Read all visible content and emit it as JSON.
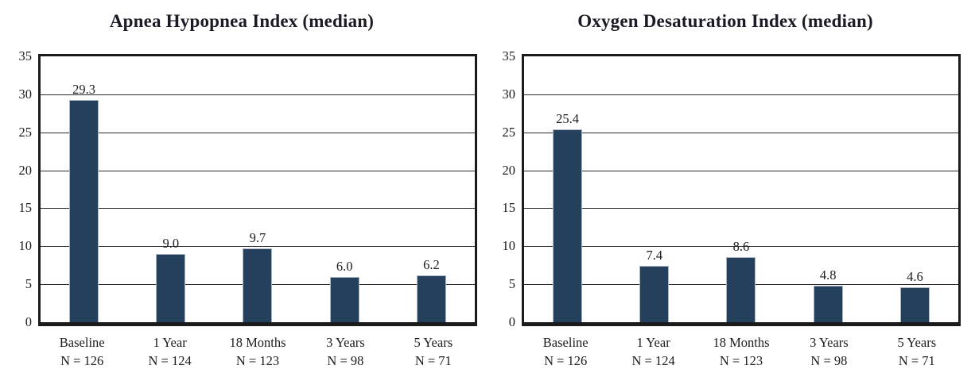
{
  "page": {
    "background": "#ffffff"
  },
  "colors": {
    "bar_fill": "#24405c",
    "bar_border": "#a9b6c2",
    "frame": "#1b1b1b",
    "gridline": "#2a2a2a",
    "text": "#1c1c22"
  },
  "chart_data": [
    {
      "type": "bar",
      "title": "Apnea Hypopnea Index (median)",
      "categories": [
        "Baseline",
        "1 Year",
        "18 Months",
        "3 Years",
        "5 Years"
      ],
      "category_sublabels": [
        "N = 126",
        "N = 124",
        "N = 123",
        "N = 98",
        "N = 71"
      ],
      "values": [
        29.3,
        9.0,
        9.7,
        6.0,
        6.2
      ],
      "value_labels": [
        "29.3",
        "9.0",
        "9.7",
        "6.0",
        "6.2"
      ],
      "xlabel": "",
      "ylabel": "",
      "ylim": [
        0,
        35
      ],
      "yticks": [
        0,
        5,
        10,
        15,
        20,
        25,
        30,
        35
      ],
      "grid": true,
      "legend": false
    },
    {
      "type": "bar",
      "title": "Oxygen Desaturation Index (median)",
      "categories": [
        "Baseline",
        "1 Year",
        "18 Months",
        "3 Years",
        "5 Years"
      ],
      "category_sublabels": [
        "N = 126",
        "N = 124",
        "N = 123",
        "N = 98",
        "N = 71"
      ],
      "values": [
        25.4,
        7.4,
        8.6,
        4.8,
        4.6
      ],
      "value_labels": [
        "25.4",
        "7.4",
        "8.6",
        "4.8",
        "4.6"
      ],
      "xlabel": "",
      "ylabel": "",
      "ylim": [
        0,
        35
      ],
      "yticks": [
        0,
        5,
        10,
        15,
        20,
        25,
        30,
        35
      ],
      "grid": true,
      "legend": false
    }
  ]
}
